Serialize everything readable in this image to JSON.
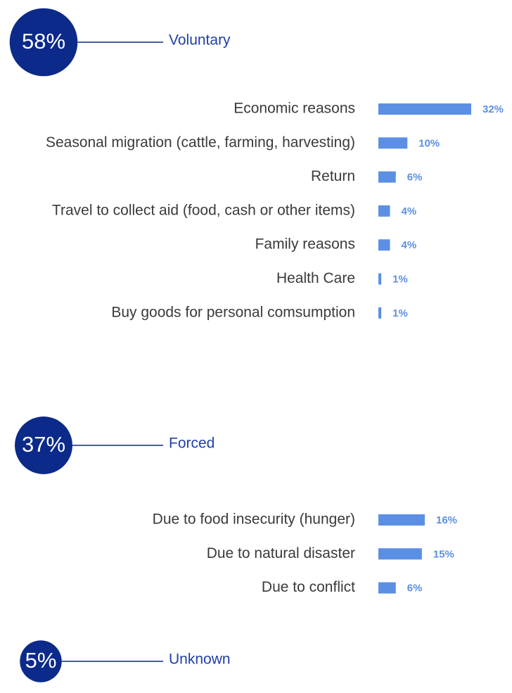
{
  "chart_data": [
    {
      "type": "bar",
      "orientation": "horizontal",
      "title": "Voluntary",
      "total": 58,
      "total_label": "58%",
      "color": "#5b8fe3",
      "categories": [
        "Economic reasons",
        "Seasonal migration (cattle, farming, harvesting)",
        "Return",
        "Travel to collect aid (food, cash or other items)",
        "Family reasons",
        "Health Care",
        "Buy goods for personal comsumption"
      ],
      "values": [
        32,
        10,
        6,
        4,
        4,
        1,
        1
      ],
      "value_labels": [
        "32%",
        "10%",
        "6%",
        "4%",
        "4%",
        "1%",
        "1%"
      ]
    },
    {
      "type": "bar",
      "orientation": "horizontal",
      "title": "Forced",
      "total": 37,
      "total_label": "37%",
      "color": "#5b8fe3",
      "categories": [
        "Due to food insecurity (hunger)",
        "Due to natural disaster",
        "Due to conflict"
      ],
      "values": [
        16,
        15,
        6
      ],
      "value_labels": [
        "16%",
        "15%",
        "6%"
      ]
    },
    {
      "type": "bar",
      "orientation": "horizontal",
      "title": "Unknown",
      "total": 5,
      "total_label": "5%",
      "color": "#5b8fe3"
    }
  ]
}
